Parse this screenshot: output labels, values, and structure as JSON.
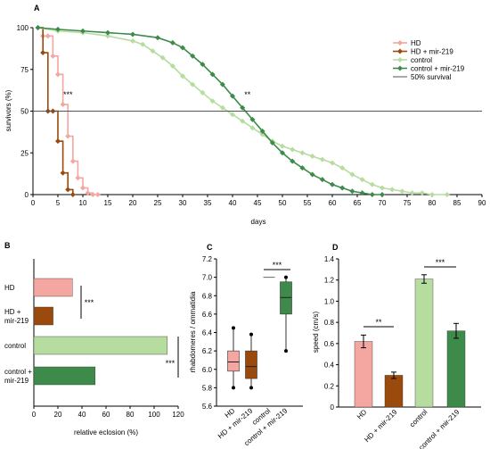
{
  "colors": {
    "hd": "#f4a6a0",
    "hd_mir219": "#9a4a0c",
    "control": "#b6dca0",
    "control_mir219": "#3d8a4a",
    "axis": "#000000",
    "ref_line": "#555555"
  },
  "chart_data": [
    {
      "panel": "A",
      "type": "line",
      "xlabel": "days",
      "ylabel": "survivors (%)",
      "xlim": [
        0,
        90
      ],
      "ylim": [
        0,
        100
      ],
      "xticks": [
        0,
        5,
        10,
        15,
        20,
        25,
        30,
        35,
        40,
        45,
        50,
        55,
        60,
        65,
        70,
        75,
        80,
        85,
        90
      ],
      "yticks": [
        0,
        25,
        50,
        75,
        100
      ],
      "grid": false,
      "legend": "top-right",
      "annotations": [
        {
          "text": "***",
          "x": 7,
          "y": 60
        },
        {
          "text": "**",
          "x": 43,
          "y": 60
        }
      ],
      "series": [
        {
          "name": "HD",
          "color_key": "hd",
          "marker": "diamond",
          "step": true,
          "points": [
            [
              1,
              100
            ],
            [
              2,
              95
            ],
            [
              3,
              95
            ],
            [
              4,
              83
            ],
            [
              5,
              72
            ],
            [
              6,
              54
            ],
            [
              7,
              35
            ],
            [
              8,
              20
            ],
            [
              9,
              10
            ],
            [
              10,
              4
            ],
            [
              11,
              1
            ],
            [
              12,
              0
            ],
            [
              13,
              0
            ]
          ]
        },
        {
          "name": "HD + mir-219",
          "color_key": "hd_mir219",
          "marker": "diamond",
          "step": true,
          "points": [
            [
              1,
              100
            ],
            [
              2,
              85
            ],
            [
              3,
              50
            ],
            [
              4,
              50
            ],
            [
              5,
              32
            ],
            [
              6,
              13
            ],
            [
              7,
              3
            ],
            [
              8,
              0
            ]
          ]
        },
        {
          "name": "control",
          "color_key": "control",
          "marker": "diamond",
          "step": false,
          "points": [
            [
              1,
              100
            ],
            [
              5,
              98
            ],
            [
              10,
              97
            ],
            [
              15,
              95
            ],
            [
              20,
              92
            ],
            [
              22,
              90
            ],
            [
              24,
              86
            ],
            [
              26,
              82
            ],
            [
              28,
              77
            ],
            [
              30,
              71
            ],
            [
              32,
              66
            ],
            [
              34,
              61
            ],
            [
              36,
              56
            ],
            [
              38,
              52
            ],
            [
              40,
              48
            ],
            [
              42,
              44
            ],
            [
              44,
              40
            ],
            [
              46,
              36
            ],
            [
              48,
              32
            ],
            [
              50,
              29
            ],
            [
              52,
              27
            ],
            [
              54,
              25
            ],
            [
              56,
              23
            ],
            [
              58,
              21
            ],
            [
              60,
              19
            ],
            [
              62,
              16
            ],
            [
              64,
              12
            ],
            [
              66,
              9
            ],
            [
              68,
              6
            ],
            [
              70,
              4
            ],
            [
              72,
              3
            ],
            [
              74,
              2
            ],
            [
              76,
              1
            ],
            [
              78,
              1
            ],
            [
              80,
              0
            ],
            [
              83,
              0
            ]
          ]
        },
        {
          "name": "control + mir-219",
          "color_key": "control_mir219",
          "marker": "diamond",
          "step": false,
          "points": [
            [
              1,
              100
            ],
            [
              5,
              99
            ],
            [
              10,
              98
            ],
            [
              15,
              97
            ],
            [
              20,
              96
            ],
            [
              25,
              94
            ],
            [
              28,
              91
            ],
            [
              30,
              88
            ],
            [
              32,
              83
            ],
            [
              34,
              78
            ],
            [
              36,
              72
            ],
            [
              38,
              66
            ],
            [
              40,
              59
            ],
            [
              42,
              52
            ],
            [
              44,
              45
            ],
            [
              46,
              38
            ],
            [
              48,
              31
            ],
            [
              50,
              25
            ],
            [
              52,
              20
            ],
            [
              54,
              16
            ],
            [
              56,
              12
            ],
            [
              58,
              9
            ],
            [
              60,
              6
            ],
            [
              62,
              4
            ],
            [
              64,
              2
            ],
            [
              66,
              1
            ],
            [
              68,
              0
            ],
            [
              70,
              0
            ]
          ]
        },
        {
          "name": "50% survival",
          "color_key": "ref_line",
          "marker": "none",
          "step": false,
          "points": [
            [
              0,
              50
            ],
            [
              90,
              50
            ]
          ]
        }
      ]
    },
    {
      "panel": "B",
      "type": "bar",
      "orientation": "horizontal",
      "xlabel": "relative eclosion (%)",
      "ylabel": "",
      "xlim": [
        0,
        120
      ],
      "xticks": [
        0,
        20,
        40,
        60,
        80,
        100,
        120
      ],
      "categories": [
        "HD",
        "HD + mir-219",
        "control",
        "control + mir-219"
      ],
      "color_keys": [
        "hd",
        "hd_mir219",
        "control",
        "control_mir219"
      ],
      "values": [
        32,
        16,
        111,
        51
      ],
      "annotations": [
        {
          "text": "***",
          "between": [
            0,
            1
          ]
        },
        {
          "text": "***",
          "between": [
            2,
            3
          ]
        }
      ]
    },
    {
      "panel": "C",
      "type": "box",
      "xlabel": "",
      "ylabel": "rhabdomeres / ommatidia",
      "ylim": [
        5.6,
        7.2
      ],
      "yticks": [
        5.6,
        5.8,
        6.0,
        6.2,
        6.4,
        6.6,
        6.8,
        7.0,
        7.2
      ],
      "categories": [
        "HD",
        "HD + mir-219",
        "control",
        "control + mir-219"
      ],
      "color_keys": [
        "hd",
        "hd_mir219",
        "control",
        "control_mir219"
      ],
      "boxes": [
        {
          "min": 5.8,
          "q1": 5.98,
          "median": 6.08,
          "q3": 6.2,
          "max": 6.45
        },
        {
          "min": 5.8,
          "q1": 5.9,
          "median": 6.03,
          "q3": 6.2,
          "max": 6.38
        },
        {
          "min": 7.0,
          "q1": 7.0,
          "median": 7.0,
          "q3": 7.0,
          "max": 7.0
        },
        {
          "min": 6.2,
          "q1": 6.6,
          "median": 6.78,
          "q3": 6.95,
          "max": 7.0
        }
      ],
      "annotations": [
        {
          "text": "***",
          "between": [
            2,
            3
          ]
        }
      ]
    },
    {
      "panel": "D",
      "type": "bar",
      "xlabel": "",
      "ylabel": "speed (cm/s)",
      "ylim": [
        0,
        1.4
      ],
      "yticks": [
        0,
        0.2,
        0.4,
        0.6,
        0.8,
        1.0,
        1.2,
        1.4
      ],
      "categories": [
        "HD",
        "HD + mir-219",
        "control",
        "control + mir-219"
      ],
      "color_keys": [
        "hd",
        "hd_mir219",
        "control",
        "control_mir219"
      ],
      "values": [
        0.62,
        0.3,
        1.21,
        0.72
      ],
      "errors": [
        0.06,
        0.03,
        0.04,
        0.07
      ],
      "annotations": [
        {
          "text": "**",
          "between": [
            0,
            1
          ]
        },
        {
          "text": "***",
          "between": [
            2,
            3
          ]
        }
      ]
    }
  ]
}
